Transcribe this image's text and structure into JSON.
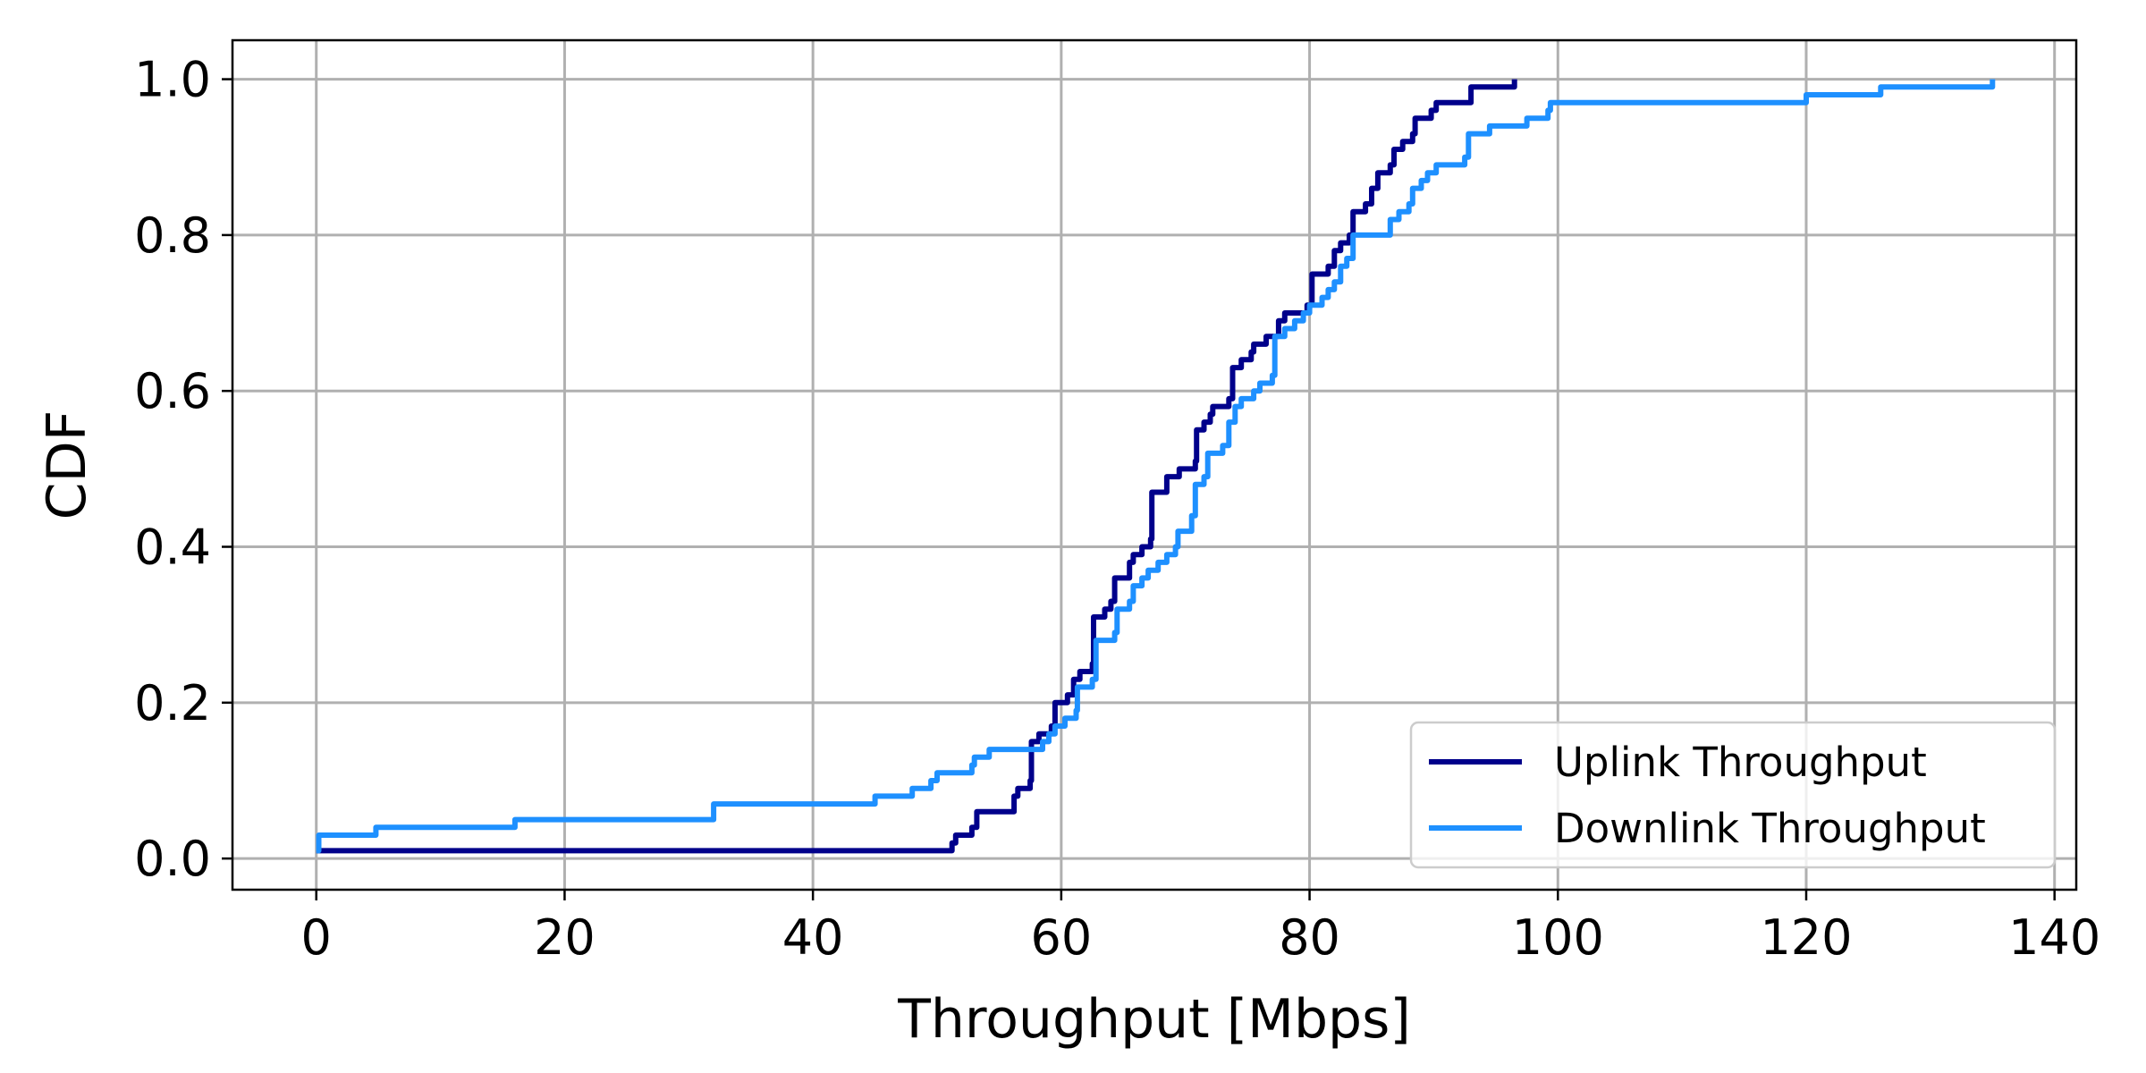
{
  "chart_data": {
    "type": "line",
    "step": "post",
    "xlabel": "Throughput [Mbps]",
    "ylabel": "CDF",
    "xlim": [
      -6.75,
      141.75
    ],
    "ylim": [
      -0.04,
      1.05
    ],
    "xticks": [
      0,
      20,
      40,
      60,
      80,
      100,
      120,
      140
    ],
    "yticks": [
      0.0,
      0.2,
      0.4,
      0.6,
      0.8,
      1.0
    ],
    "xtick_labels": [
      "0",
      "20",
      "40",
      "60",
      "80",
      "100",
      "120",
      "140"
    ],
    "ytick_labels": [
      "0.0",
      "0.2",
      "0.4",
      "0.6",
      "0.8",
      "1.0"
    ],
    "grid": true,
    "legend_position": "lower-right",
    "series": [
      {
        "name": "Uplink Throughput",
        "color": "#00008b",
        "points": [
          [
            0,
            0.01
          ],
          [
            51.2,
            0.02
          ],
          [
            51.5,
            0.03
          ],
          [
            52.8,
            0.04
          ],
          [
            53.2,
            0.06
          ],
          [
            56.2,
            0.08
          ],
          [
            56.5,
            0.09
          ],
          [
            57.5,
            0.1
          ],
          [
            57.6,
            0.15
          ],
          [
            58.2,
            0.16
          ],
          [
            59.2,
            0.17
          ],
          [
            59.5,
            0.2
          ],
          [
            60.5,
            0.21
          ],
          [
            61.0,
            0.23
          ],
          [
            61.5,
            0.24
          ],
          [
            62.5,
            0.25
          ],
          [
            62.6,
            0.31
          ],
          [
            63.5,
            0.32
          ],
          [
            64.0,
            0.33
          ],
          [
            64.3,
            0.36
          ],
          [
            65.5,
            0.38
          ],
          [
            65.8,
            0.39
          ],
          [
            66.5,
            0.4
          ],
          [
            67.2,
            0.41
          ],
          [
            67.3,
            0.47
          ],
          [
            68.5,
            0.49
          ],
          [
            69.5,
            0.5
          ],
          [
            70.8,
            0.51
          ],
          [
            70.9,
            0.55
          ],
          [
            71.5,
            0.56
          ],
          [
            72.0,
            0.57
          ],
          [
            72.2,
            0.58
          ],
          [
            73.5,
            0.59
          ],
          [
            73.8,
            0.63
          ],
          [
            74.5,
            0.64
          ],
          [
            75.3,
            0.65
          ],
          [
            75.5,
            0.66
          ],
          [
            76.5,
            0.67
          ],
          [
            77.5,
            0.69
          ],
          [
            78.0,
            0.7
          ],
          [
            79.5,
            0.7
          ],
          [
            79.8,
            0.71
          ],
          [
            80.2,
            0.75
          ],
          [
            81.5,
            0.76
          ],
          [
            82.0,
            0.78
          ],
          [
            82.5,
            0.79
          ],
          [
            83.2,
            0.8
          ],
          [
            83.5,
            0.83
          ],
          [
            84.5,
            0.84
          ],
          [
            85.0,
            0.86
          ],
          [
            85.5,
            0.88
          ],
          [
            86.5,
            0.89
          ],
          [
            86.8,
            0.91
          ],
          [
            87.5,
            0.92
          ],
          [
            88.3,
            0.93
          ],
          [
            88.5,
            0.95
          ],
          [
            89.8,
            0.96
          ],
          [
            90.2,
            0.97
          ],
          [
            93.0,
            0.99
          ],
          [
            96.5,
            1.0
          ]
        ]
      },
      {
        "name": "Downlink Throughput",
        "color": "#1e90ff",
        "points": [
          [
            0,
            0.01
          ],
          [
            0.2,
            0.03
          ],
          [
            4.8,
            0.04
          ],
          [
            16.0,
            0.05
          ],
          [
            32.0,
            0.07
          ],
          [
            45.0,
            0.08
          ],
          [
            48.0,
            0.09
          ],
          [
            49.5,
            0.1
          ],
          [
            50.0,
            0.11
          ],
          [
            52.8,
            0.12
          ],
          [
            53.0,
            0.13
          ],
          [
            54.2,
            0.14
          ],
          [
            58.5,
            0.15
          ],
          [
            59.0,
            0.16
          ],
          [
            59.5,
            0.17
          ],
          [
            60.3,
            0.18
          ],
          [
            61.2,
            0.19
          ],
          [
            61.3,
            0.22
          ],
          [
            62.5,
            0.23
          ],
          [
            62.8,
            0.28
          ],
          [
            64.3,
            0.29
          ],
          [
            64.5,
            0.32
          ],
          [
            65.5,
            0.33
          ],
          [
            65.8,
            0.35
          ],
          [
            66.5,
            0.36
          ],
          [
            67.0,
            0.37
          ],
          [
            67.8,
            0.38
          ],
          [
            68.5,
            0.39
          ],
          [
            69.2,
            0.4
          ],
          [
            69.4,
            0.42
          ],
          [
            70.5,
            0.44
          ],
          [
            70.8,
            0.48
          ],
          [
            71.5,
            0.49
          ],
          [
            71.8,
            0.52
          ],
          [
            73.0,
            0.53
          ],
          [
            73.5,
            0.56
          ],
          [
            74.0,
            0.58
          ],
          [
            74.5,
            0.59
          ],
          [
            75.5,
            0.6
          ],
          [
            76.0,
            0.61
          ],
          [
            77.0,
            0.62
          ],
          [
            77.2,
            0.67
          ],
          [
            78.0,
            0.68
          ],
          [
            78.8,
            0.69
          ],
          [
            79.5,
            0.7
          ],
          [
            80.0,
            0.71
          ],
          [
            81.0,
            0.72
          ],
          [
            81.5,
            0.73
          ],
          [
            82.0,
            0.74
          ],
          [
            82.5,
            0.76
          ],
          [
            83.0,
            0.77
          ],
          [
            83.5,
            0.8
          ],
          [
            84.5,
            0.8
          ],
          [
            86.5,
            0.82
          ],
          [
            87.2,
            0.83
          ],
          [
            88.0,
            0.84
          ],
          [
            88.3,
            0.86
          ],
          [
            89.0,
            0.87
          ],
          [
            89.5,
            0.88
          ],
          [
            90.2,
            0.89
          ],
          [
            92.5,
            0.9
          ],
          [
            92.8,
            0.93
          ],
          [
            94.5,
            0.94
          ],
          [
            97.5,
            0.95
          ],
          [
            99.2,
            0.96
          ],
          [
            99.4,
            0.97
          ],
          [
            120.0,
            0.98
          ],
          [
            126.0,
            0.99
          ],
          [
            135.0,
            1.0
          ]
        ]
      }
    ]
  }
}
